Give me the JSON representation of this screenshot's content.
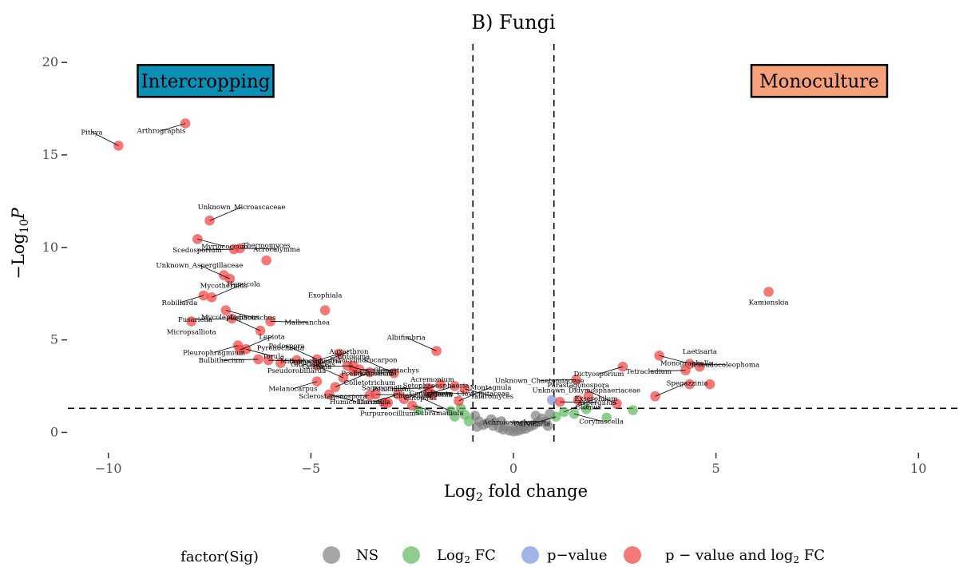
{
  "chart_data": {
    "type": "scatter",
    "title": "B) Fungi",
    "xlabel_base": "Log",
    "xlabel_sub": "2",
    "xlabel_rest": " fold change",
    "ylabel_prefix": "−Log",
    "ylabel_sub": "10",
    "ylabel_p": "P",
    "xlim": [
      -11,
      11
    ],
    "ylim": [
      -0.5,
      21
    ],
    "x_ticks": [
      -10,
      -5,
      0,
      5,
      10
    ],
    "x_tick_labels": [
      "−10",
      "−5",
      "0",
      "5",
      "10"
    ],
    "y_ticks": [
      0,
      5,
      10,
      15,
      20
    ],
    "y_tick_labels": [
      "0",
      "5",
      "10",
      "15",
      "20"
    ],
    "fc_cutoffs": [
      -1,
      1
    ],
    "p_cutoff": 1.3,
    "annotations": [
      {
        "text": "Intercropping",
        "x": -7.6,
        "y": 19.0,
        "fill": "#0c8fb6"
      },
      {
        "text": "Monoculture",
        "x": 7.55,
        "y": 19.0,
        "fill": "#f6a17c"
      }
    ],
    "legend": {
      "title": "factor(Sig)",
      "items": [
        {
          "key": "NS",
          "label": "NS",
          "color": "#808080"
        },
        {
          "key": "FC",
          "label_base": "Log",
          "label_sub": "2",
          "label_rest": " FC",
          "color": "#5fb85f"
        },
        {
          "key": "P",
          "label": "p−value",
          "color": "#7b93dc"
        },
        {
          "key": "PFC",
          "label_prefix": "p − value and log",
          "label_sub": "2",
          "label_rest": " FC",
          "color": "#ef3e3e"
        }
      ]
    },
    "series": [
      {
        "name": "p − value and log2 FC",
        "key": "PFC",
        "points": [
          {
            "x": -9.75,
            "y": 15.5,
            "label": "Pithya"
          },
          {
            "x": -8.1,
            "y": 16.7,
            "label": "Arthrographis"
          },
          {
            "x": -7.5,
            "y": 11.45,
            "label": "Unknown_Microascaceae"
          },
          {
            "x": -7.8,
            "y": 10.45,
            "label": "Myriococcum"
          },
          {
            "x": -6.9,
            "y": 9.9,
            "label": "Scedosporium"
          },
          {
            "x": -6.75,
            "y": 9.95,
            "label": "Acrocalymma"
          },
          {
            "x": -6.1,
            "y": 9.3,
            "label": "Thermomyces"
          },
          {
            "x": -7.15,
            "y": 8.5,
            "label": "Mycothermus"
          },
          {
            "x": -7.0,
            "y": 8.3,
            "label": "Unknown_Aspergillaceae"
          },
          {
            "x": -7.65,
            "y": 7.4,
            "label": "Robillarda"
          },
          {
            "x": -7.45,
            "y": 7.3,
            "label": "Humicola"
          },
          {
            "x": -7.1,
            "y": 6.6,
            "label": "Lophotrichus"
          },
          {
            "x": -6.95,
            "y": 6.15,
            "label": "Fusariella"
          },
          {
            "x": -6.0,
            "y": 6.0,
            "label": "Malbranchea"
          },
          {
            "x": -4.65,
            "y": 6.6,
            "label": "Exophiala"
          },
          {
            "x": -7.95,
            "y": 6.0,
            "label": "Micropsalliota"
          },
          {
            "x": -6.25,
            "y": 5.5,
            "label": "Mycoleptodiscus"
          },
          {
            "x": -6.8,
            "y": 4.7,
            "label": "Pleurophragmium"
          },
          {
            "x": -6.75,
            "y": 4.45,
            "label": "Lepiota"
          },
          {
            "x": -6.6,
            "y": 4.5,
            "label": "Torula"
          },
          {
            "x": -6.3,
            "y": 3.95,
            "label": "Bulbithecium"
          },
          {
            "x": -6.05,
            "y": 3.9,
            "label": "Microdochium"
          },
          {
            "x": -5.75,
            "y": 3.75,
            "label": "Pyrenochaeta"
          },
          {
            "x": -5.35,
            "y": 3.9,
            "label": "Pseudorobillarda"
          },
          {
            "x": -4.85,
            "y": 3.95,
            "label": "Podospora"
          },
          {
            "x": -4.3,
            "y": 4.25,
            "label": "Botryosphaeria"
          },
          {
            "x": -4.85,
            "y": 3.65,
            "label": "Auxarthron"
          },
          {
            "x": -4.1,
            "y": 3.6,
            "label": "Trichoderma"
          },
          {
            "x": -3.95,
            "y": 3.6,
            "label": "Cristinia"
          },
          {
            "x": -3.8,
            "y": 3.4,
            "label": "Clonostachys"
          },
          {
            "x": -3.95,
            "y": 3.3,
            "label": "Entoloma"
          },
          {
            "x": -3.55,
            "y": 3.25,
            "label": "Colletotrichum"
          },
          {
            "x": -4.2,
            "y": 2.95,
            "label": "Gibellulopsis"
          },
          {
            "x": -4.85,
            "y": 2.75,
            "label": "Melanocarpus"
          },
          {
            "x": -4.4,
            "y": 2.45,
            "label": "Pseudeurotium"
          },
          {
            "x": -4.55,
            "y": 2.05,
            "label": "Humicoliformis"
          },
          {
            "x": -3.55,
            "y": 2.0,
            "label": "Sclerostagonospora"
          },
          {
            "x": -3.4,
            "y": 2.05,
            "label": "Chloridium"
          },
          {
            "x": -3.2,
            "y": 1.6,
            "label": "Sagenomella"
          },
          {
            "x": -3.1,
            "y": 1.6,
            "label": "Purpureocillium"
          },
          {
            "x": -2.95,
            "y": 3.2,
            "label": "Paracylindrocarpon"
          },
          {
            "x": -2.85,
            "y": 2.05,
            "label": "Dioszegia"
          },
          {
            "x": -2.7,
            "y": 1.8,
            "label": "Setophaeosphaeria"
          },
          {
            "x": -2.5,
            "y": 1.45,
            "label": "Subramaniula"
          },
          {
            "x": -2.1,
            "y": 2.4,
            "label": "Penicillium"
          },
          {
            "x": -2.1,
            "y": 2.15,
            "label": "Unknown_Clavicipitaceae"
          },
          {
            "x": -2.0,
            "y": 2.05,
            "label": "Acremonium"
          },
          {
            "x": -1.8,
            "y": 2.6,
            "label": "Edenia"
          },
          {
            "x": -1.9,
            "y": 4.4,
            "label": "Albifimbria"
          },
          {
            "x": -1.45,
            "y": 2.5,
            "label": "Coniochaeta"
          },
          {
            "x": -1.35,
            "y": 1.7,
            "label": "Montagnula"
          },
          {
            "x": -1.2,
            "y": 2.35,
            "label": "Talaromyces"
          },
          {
            "x": 1.55,
            "y": 2.85,
            "label": "Unknown_Chaetomiaceae"
          },
          {
            "x": 1.15,
            "y": 1.65,
            "label": "Aspergillus"
          },
          {
            "x": 1.6,
            "y": 1.75,
            "label": "Parastagonospora"
          },
          {
            "x": 1.85,
            "y": 1.95,
            "label": "Glomus"
          },
          {
            "x": 2.55,
            "y": 1.55,
            "label": "Unknown_Didymosphaeriaceae"
          },
          {
            "x": 2.7,
            "y": 3.55,
            "label": "Dictyosporium"
          },
          {
            "x": 3.5,
            "y": 1.95,
            "label": "Spegazzinia"
          },
          {
            "x": 3.6,
            "y": 4.15,
            "label": "Monographella"
          },
          {
            "x": 4.25,
            "y": 3.35,
            "label": "Tetracladium"
          },
          {
            "x": 4.35,
            "y": 3.7,
            "label": "Pseudocoleophoma"
          },
          {
            "x": 4.6,
            "y": 3.55,
            "label": "Laetisaria"
          },
          {
            "x": 4.35,
            "y": 2.6,
            "label": ""
          },
          {
            "x": 4.85,
            "y": 2.6,
            "label": ""
          },
          {
            "x": 6.3,
            "y": 7.6,
            "label": "Kamienskia"
          }
        ]
      },
      {
        "name": "Log2 FC",
        "key": "FC",
        "points": [
          {
            "x": -1.55,
            "y": 1.15,
            "label": "Clitopilus"
          },
          {
            "x": -1.45,
            "y": 0.85,
            "label": ""
          },
          {
            "x": -1.2,
            "y": 0.95,
            "label": ""
          },
          {
            "x": -1.1,
            "y": 0.6,
            "label": ""
          },
          {
            "x": -2.35,
            "y": 1.2,
            "label": ""
          },
          {
            "x": -1.3,
            "y": 1.3,
            "label": ""
          },
          {
            "x": 1.05,
            "y": 0.85,
            "label": "Curvularia"
          },
          {
            "x": 1.25,
            "y": 1.1,
            "label": "Exserohilum"
          },
          {
            "x": 1.5,
            "y": 1.0,
            "label": "Corynascella"
          },
          {
            "x": 1.8,
            "y": 1.25,
            "label": ""
          },
          {
            "x": 2.3,
            "y": 0.8,
            "label": ""
          },
          {
            "x": 2.95,
            "y": 1.2,
            "label": ""
          }
        ]
      },
      {
        "name": "p−value",
        "key": "P",
        "points": [
          {
            "x": 0.95,
            "y": 1.75,
            "label": ""
          }
        ]
      },
      {
        "name": "NS",
        "key": "NS",
        "points": [
          {
            "x": -0.95,
            "y": 0.9,
            "label": ""
          },
          {
            "x": -0.85,
            "y": 0.6,
            "label": ""
          },
          {
            "x": -0.75,
            "y": 0.4,
            "label": ""
          },
          {
            "x": -0.55,
            "y": 0.7,
            "label": ""
          },
          {
            "x": -0.5,
            "y": 0.35,
            "label": ""
          },
          {
            "x": -0.35,
            "y": 0.25,
            "label": ""
          },
          {
            "x": -0.25,
            "y": 0.15,
            "label": ""
          },
          {
            "x": -0.1,
            "y": 0.1,
            "label": ""
          },
          {
            "x": 0.0,
            "y": 0.05,
            "label": ""
          },
          {
            "x": 0.1,
            "y": 0.08,
            "label": ""
          },
          {
            "x": 0.2,
            "y": 0.15,
            "label": ""
          },
          {
            "x": 0.3,
            "y": 0.2,
            "label": ""
          },
          {
            "x": 0.4,
            "y": 0.3,
            "label": ""
          },
          {
            "x": 0.5,
            "y": 0.4,
            "label": ""
          },
          {
            "x": 0.6,
            "y": 0.55,
            "label": ""
          },
          {
            "x": 0.7,
            "y": 0.75,
            "label": ""
          },
          {
            "x": 0.8,
            "y": 0.6,
            "label": "Achroiostachys"
          },
          {
            "x": -0.65,
            "y": 0.5,
            "label": ""
          },
          {
            "x": -0.45,
            "y": 0.55,
            "label": ""
          },
          {
            "x": -0.2,
            "y": 0.3,
            "label": ""
          },
          {
            "x": 0.25,
            "y": 0.4,
            "label": ""
          },
          {
            "x": 0.55,
            "y": 0.9,
            "label": ""
          },
          {
            "x": -0.9,
            "y": 0.3,
            "label": ""
          },
          {
            "x": 0.85,
            "y": 0.35,
            "label": ""
          },
          {
            "x": -0.3,
            "y": 0.6,
            "label": ""
          },
          {
            "x": 0.05,
            "y": 0.3,
            "label": ""
          },
          {
            "x": 0.9,
            "y": 1.0,
            "label": ""
          }
        ]
      }
    ]
  }
}
